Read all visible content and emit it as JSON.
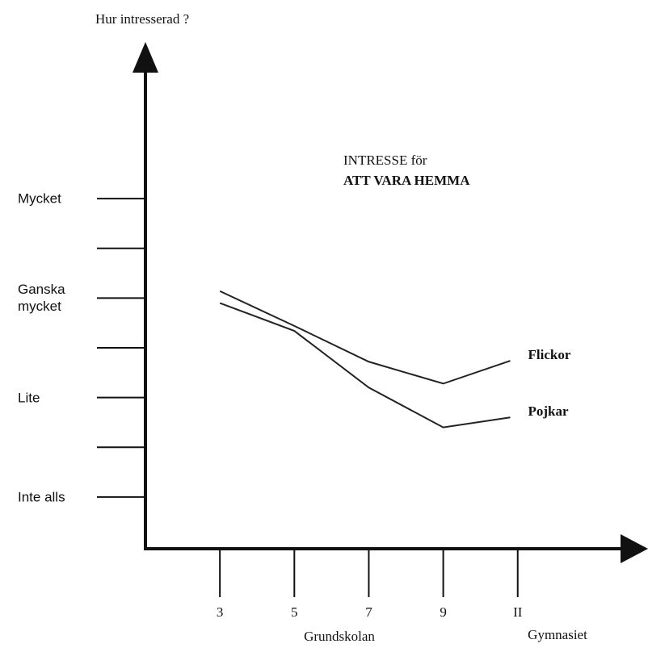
{
  "chart_data": {
    "type": "line",
    "title": "INTRESSE för",
    "subtitle": "ATT VARA HEMMA",
    "y_label": "Hur intresserad ?",
    "annotations": [
      "Grundskolan",
      "Gymnasiet"
    ],
    "xlim": [
      1,
      14.5
    ],
    "xticks": [
      3,
      5,
      7,
      9,
      {
        "value": 11,
        "label": "II"
      }
    ],
    "ylim": [
      -0.52,
      4.51
    ],
    "yticks": [
      {
        "value": 0,
        "label": "Inte alls"
      },
      {
        "value": 0.5,
        "label": null
      },
      {
        "value": 1,
        "label": "Lite"
      },
      {
        "value": 1.5,
        "label": null
      },
      {
        "value": 2,
        "label": "Ganska mycket"
      },
      {
        "value": 2.5,
        "label": null
      },
      {
        "value": 3,
        "label": "Mycket"
      }
    ],
    "x": [
      3,
      5,
      7,
      9,
      10.8
    ],
    "series": [
      {
        "name": "Flickor",
        "color": "#222222",
        "values": [
          2.07,
          1.72,
          1.36,
          1.14,
          1.37
        ]
      },
      {
        "name": "Pojkar",
        "color": "#222222",
        "values": [
          1.95,
          1.67,
          1.1,
          0.7,
          0.8
        ]
      }
    ]
  }
}
